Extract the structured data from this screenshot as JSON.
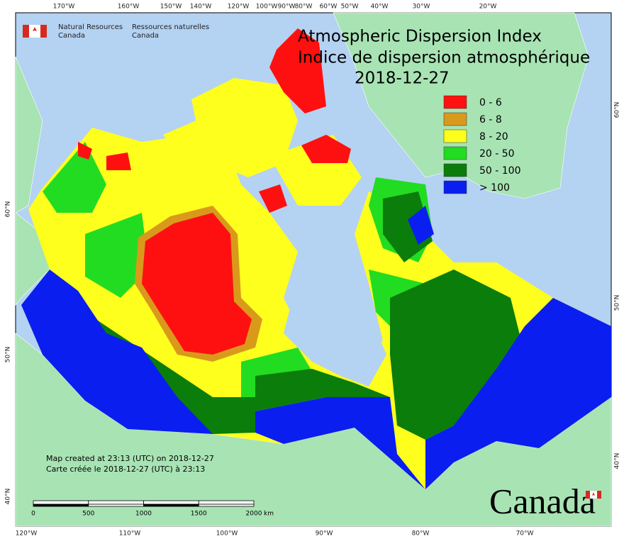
{
  "header": {
    "agency_en": [
      "Natural Resources",
      "Canada"
    ],
    "agency_fr": [
      "Ressources naturelles",
      "Canada"
    ]
  },
  "title": {
    "line_en": "Atmospheric Dispersion Index",
    "line_fr": "Indice de dispersion atmosphérique",
    "date": "2018-12-27"
  },
  "legend": [
    {
      "label": "0 - 6",
      "color": "#ff1010"
    },
    {
      "label": "6 - 8",
      "color": "#d99a1c"
    },
    {
      "label": "8 - 20",
      "color": "#ffff1e"
    },
    {
      "label": "20 - 50",
      "color": "#22dc22"
    },
    {
      "label": "50 - 100",
      "color": "#0b7d0b"
    },
    {
      "label": "> 100",
      "color": "#0a1ef0"
    }
  ],
  "graticule": {
    "top": [
      "170°W",
      "160°W",
      "150°W",
      "140°W",
      "120°W",
      "100°W",
      "90°W",
      "80°W",
      "60°W",
      "50°W",
      "40°W",
      "30°W",
      "20°W"
    ],
    "bottom": [
      "120°W",
      "110°W",
      "100°W",
      "90°W",
      "80°W",
      "70°W"
    ],
    "left": [
      "60°N",
      "50°N",
      "40°N"
    ],
    "right": [
      "60°N",
      "50°N",
      "40°N"
    ]
  },
  "credit": [
    "Map created at 23:13 (UTC) on 2018-12-27",
    "Carte créée le 2018-12-27 (UTC) à 23:13"
  ],
  "scale_bar": {
    "ticks": [
      0,
      500,
      1000,
      1500,
      2000
    ],
    "unit": "km"
  },
  "wordmark": "Canada"
}
